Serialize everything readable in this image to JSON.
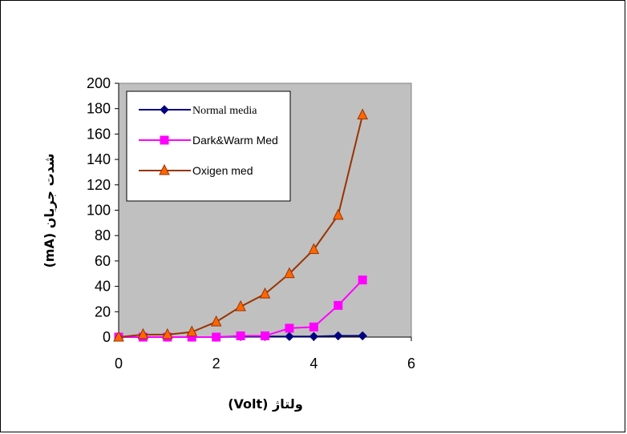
{
  "chart_data": {
    "type": "line",
    "title": "",
    "xlabel": "ولتاژ (Volt)",
    "ylabel": "شدت جریان (mA)",
    "xlim": [
      0,
      6
    ],
    "ylim": [
      0,
      200
    ],
    "x_ticks": [
      "0",
      "2",
      "4",
      "6"
    ],
    "y_ticks": [
      "0",
      "20",
      "40",
      "60",
      "80",
      "100",
      "120",
      "140",
      "160",
      "180",
      "200"
    ],
    "grid": false,
    "legend_position": "top-left",
    "plot_background": "#c0c0c0",
    "series": [
      {
        "name": "Normal media",
        "color": "#000080",
        "marker": "diamond",
        "x": [
          0,
          0.5,
          1,
          1.5,
          2,
          2.5,
          3,
          3.5,
          4,
          4.5,
          5
        ],
        "y": [
          0,
          0,
          0,
          0,
          0,
          0.5,
          0.5,
          0.5,
          0.5,
          1,
          1
        ]
      },
      {
        "name": "Dark&Warm Med",
        "color": "#ff00ff",
        "marker": "square",
        "x": [
          0,
          0.5,
          1,
          1.5,
          2,
          2.5,
          3,
          3.5,
          4,
          4.5,
          5
        ],
        "y": [
          0,
          0,
          0,
          0,
          0,
          1,
          1,
          7,
          8,
          25,
          45
        ]
      },
      {
        "name": "Oxigen med",
        "color": "#993300",
        "marker": "triangle",
        "marker_fill": "#ff6600",
        "x": [
          0,
          0.5,
          1,
          1.5,
          2,
          2.5,
          3,
          3.5,
          4,
          4.5,
          5
        ],
        "y": [
          0,
          2,
          2,
          4,
          12,
          24,
          34,
          50,
          69,
          96,
          175
        ]
      }
    ]
  }
}
